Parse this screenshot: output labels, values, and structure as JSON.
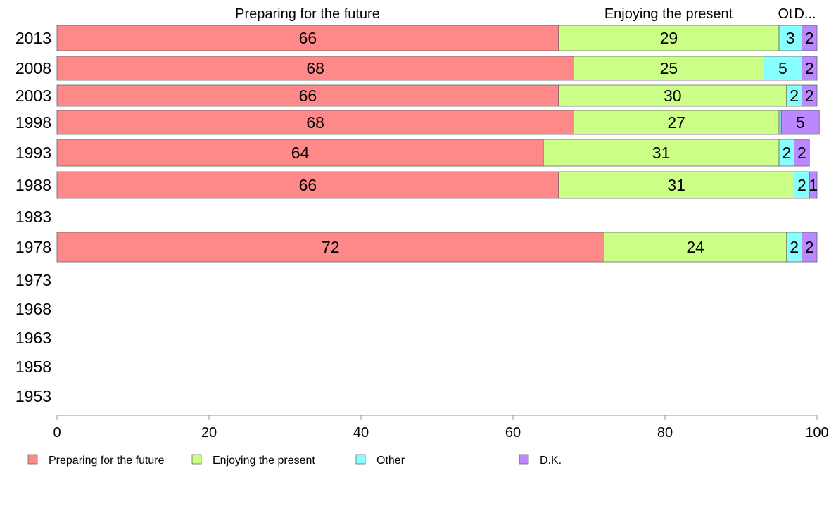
{
  "chart_data": {
    "type": "bar",
    "orientation": "horizontal",
    "stacked": true,
    "categories": [
      "2013",
      "2008",
      "2003",
      "1998",
      "1993",
      "1988",
      "1983",
      "1978",
      "1973",
      "1968",
      "1963",
      "1958",
      "1953"
    ],
    "series": [
      {
        "name": "Preparing for the future",
        "color": "#ff8888",
        "values": [
          66,
          68,
          66,
          68,
          64,
          66,
          null,
          72,
          null,
          null,
          null,
          null,
          null
        ]
      },
      {
        "name": "Enjoying the present",
        "color": "#ccff88",
        "values": [
          29,
          25,
          30,
          27,
          31,
          31,
          null,
          24,
          null,
          null,
          null,
          null,
          null
        ]
      },
      {
        "name": "Other",
        "color": "#88ffff",
        "values": [
          3,
          5,
          2,
          0.3,
          2,
          2,
          null,
          2,
          null,
          null,
          null,
          null,
          null
        ]
      },
      {
        "name": "D.K.",
        "color": "#bb88ff",
        "values": [
          2,
          2,
          2,
          5,
          2,
          1,
          null,
          2,
          null,
          null,
          null,
          null,
          null
        ]
      }
    ],
    "data_labels": [
      [
        "66",
        "29",
        "3",
        "2"
      ],
      [
        "68",
        "25",
        "5",
        "2"
      ],
      [
        "66",
        "30",
        "2",
        "2"
      ],
      [
        "68",
        "27",
        "",
        "5"
      ],
      [
        "64",
        "31",
        "2",
        "2"
      ],
      [
        "66",
        "31",
        "2",
        "1"
      ],
      [
        "",
        "",
        "",
        ""
      ],
      [
        "72",
        "24",
        "2",
        "2"
      ],
      [
        "",
        "",
        "",
        ""
      ],
      [
        "",
        "",
        "",
        ""
      ],
      [
        "",
        "",
        "",
        ""
      ],
      [
        "",
        "",
        "",
        ""
      ],
      [
        "",
        "",
        "",
        ""
      ]
    ],
    "top_labels": [
      "Preparing for the future",
      "Enjoying the present",
      "Ot",
      "D..."
    ],
    "xlim": [
      0,
      100
    ],
    "xticks": [
      "0",
      "20",
      "40",
      "60",
      "80",
      "100"
    ],
    "grid": false,
    "legend": {
      "placement": "bottom",
      "entries": [
        "Preparing for the future",
        "Enjoying the present",
        "Other",
        "D.K."
      ]
    }
  }
}
